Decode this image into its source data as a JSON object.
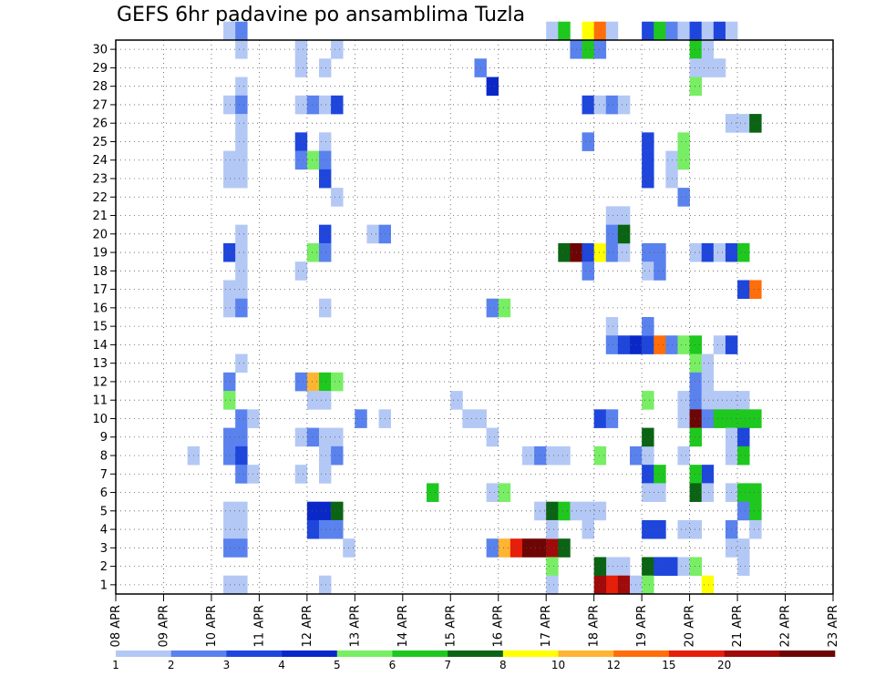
{
  "chart_data": {
    "type": "heatmap",
    "title": "GEFS 6hr padavine po ansamblima Tuzla",
    "xlabel": "",
    "ylabel": "",
    "x_ticks": [
      "08 APR",
      "09 APR",
      "10 APR",
      "11 APR",
      "12 APR",
      "13 APR",
      "14 APR",
      "15 APR",
      "16 APR",
      "17 APR",
      "18 APR",
      "19 APR",
      "20 APR",
      "21 APR",
      "22 APR",
      "23 APR"
    ],
    "y_ticks": [
      1,
      2,
      3,
      4,
      5,
      6,
      7,
      8,
      9,
      10,
      11,
      12,
      13,
      14,
      15,
      16,
      17,
      18,
      19,
      20,
      21,
      22,
      23,
      24,
      25,
      26,
      27,
      28,
      29,
      30
    ],
    "x_steps_per_day": 4,
    "xlim_steps": [
      0,
      60
    ],
    "ylim_members": [
      0,
      30
    ],
    "grid": true,
    "legend_position": "bottom",
    "colorbar": {
      "boundaries": [
        "1",
        "2",
        "3",
        "4",
        "5",
        "6",
        "7",
        "8",
        "10",
        "12",
        "15",
        "20"
      ],
      "colors": [
        "#b4c8f5",
        "#5a82ee",
        "#1e46dc",
        "#0a28c8",
        "#78ee64",
        "#1ec81e",
        "#0a6414",
        "#ffff00",
        "#ffb432",
        "#ff6e0a",
        "#e61e0a",
        "#a00a0a",
        "#6e0505"
      ]
    },
    "cells": [
      [
        9,
        30,
        0
      ],
      [
        10,
        30,
        1
      ],
      [
        10,
        29,
        0
      ],
      [
        10,
        27,
        0
      ],
      [
        9,
        26,
        0
      ],
      [
        10,
        26,
        1
      ],
      [
        10,
        25,
        0
      ],
      [
        10,
        24,
        0
      ],
      [
        9,
        23,
        0
      ],
      [
        10,
        23,
        0
      ],
      [
        9,
        22,
        0
      ],
      [
        10,
        22,
        0
      ],
      [
        10,
        19,
        0
      ],
      [
        9,
        18,
        2
      ],
      [
        10,
        18,
        0
      ],
      [
        10,
        17,
        0
      ],
      [
        9,
        16,
        0
      ],
      [
        10,
        16,
        0
      ],
      [
        9,
        15,
        0
      ],
      [
        10,
        15,
        1
      ],
      [
        10,
        12,
        0
      ],
      [
        9,
        11,
        1
      ],
      [
        9,
        10,
        4
      ],
      [
        10,
        9,
        1
      ],
      [
        11,
        9,
        0
      ],
      [
        9,
        8,
        1
      ],
      [
        10,
        8,
        1
      ],
      [
        9,
        7,
        1
      ],
      [
        10,
        7,
        2
      ],
      [
        10,
        6,
        1
      ],
      [
        11,
        6,
        0
      ],
      [
        9,
        4,
        0
      ],
      [
        10,
        4,
        0
      ],
      [
        9,
        3,
        0
      ],
      [
        10,
        3,
        0
      ],
      [
        9,
        2,
        1
      ],
      [
        10,
        2,
        1
      ],
      [
        9,
        0,
        0
      ],
      [
        10,
        0,
        0
      ],
      [
        6,
        7,
        0
      ],
      [
        15,
        29,
        0
      ],
      [
        18,
        29,
        0
      ],
      [
        15,
        28,
        0
      ],
      [
        17,
        28,
        0
      ],
      [
        15,
        26,
        0
      ],
      [
        16,
        26,
        1
      ],
      [
        17,
        26,
        0
      ],
      [
        18,
        26,
        2
      ],
      [
        15,
        24,
        2
      ],
      [
        17,
        24,
        0
      ],
      [
        15,
        23,
        1
      ],
      [
        16,
        23,
        4
      ],
      [
        17,
        23,
        1
      ],
      [
        17,
        22,
        2
      ],
      [
        18,
        21,
        0
      ],
      [
        17,
        19,
        2
      ],
      [
        16,
        18,
        4
      ],
      [
        17,
        18,
        1
      ],
      [
        15,
        17,
        0
      ],
      [
        17,
        15,
        0
      ],
      [
        15,
        11,
        1
      ],
      [
        16,
        11,
        8
      ],
      [
        17,
        11,
        5
      ],
      [
        18,
        11,
        4
      ],
      [
        16,
        10,
        0
      ],
      [
        17,
        10,
        0
      ],
      [
        15,
        8,
        0
      ],
      [
        16,
        8,
        1
      ],
      [
        17,
        8,
        0
      ],
      [
        18,
        8,
        0
      ],
      [
        17,
        7,
        0
      ],
      [
        18,
        7,
        1
      ],
      [
        15,
        6,
        0
      ],
      [
        17,
        6,
        0
      ],
      [
        16,
        4,
        3
      ],
      [
        17,
        4,
        3
      ],
      [
        18,
        4,
        6
      ],
      [
        16,
        3,
        2
      ],
      [
        17,
        3,
        1
      ],
      [
        18,
        3,
        1
      ],
      [
        17,
        0,
        0
      ],
      [
        19,
        2,
        0
      ],
      [
        20,
        9,
        1
      ],
      [
        22,
        9,
        0
      ],
      [
        21,
        19,
        0
      ],
      [
        22,
        19,
        1
      ],
      [
        26,
        5,
        5
      ],
      [
        28,
        10,
        0
      ],
      [
        29,
        9,
        0
      ],
      [
        30,
        9,
        0
      ],
      [
        31,
        8,
        0
      ],
      [
        30,
        28,
        1
      ],
      [
        31,
        27,
        3
      ],
      [
        31,
        15,
        1
      ],
      [
        32,
        15,
        4
      ],
      [
        31,
        5,
        0
      ],
      [
        32,
        5,
        4
      ],
      [
        31,
        2,
        1
      ],
      [
        32,
        2,
        8
      ],
      [
        33,
        2,
        10
      ],
      [
        34,
        2,
        12
      ],
      [
        35,
        2,
        12
      ],
      [
        36,
        2,
        11
      ],
      [
        37,
        2,
        6
      ],
      [
        34,
        7,
        0
      ],
      [
        35,
        7,
        1
      ],
      [
        36,
        7,
        0
      ],
      [
        37,
        7,
        0
      ],
      [
        35,
        4,
        0
      ],
      [
        36,
        4,
        6
      ],
      [
        37,
        4,
        5
      ],
      [
        38,
        4,
        0
      ],
      [
        36,
        3,
        0
      ],
      [
        36,
        1,
        4
      ],
      [
        36,
        0,
        0
      ],
      [
        36,
        30,
        0
      ],
      [
        37,
        30,
        5
      ],
      [
        38,
        29,
        1
      ],
      [
        39,
        29,
        5
      ],
      [
        39,
        30,
        7
      ],
      [
        40,
        30,
        9
      ],
      [
        41,
        30,
        0
      ],
      [
        40,
        29,
        1
      ],
      [
        37,
        18,
        6
      ],
      [
        38,
        18,
        12
      ],
      [
        39,
        18,
        2
      ],
      [
        40,
        18,
        7
      ],
      [
        41,
        18,
        1
      ],
      [
        42,
        18,
        0
      ],
      [
        39,
        17,
        1
      ],
      [
        39,
        26,
        2
      ],
      [
        40,
        26,
        0
      ],
      [
        41,
        26,
        1
      ],
      [
        42,
        26,
        0
      ],
      [
        39,
        24,
        1
      ],
      [
        41,
        20,
        0
      ],
      [
        42,
        20,
        0
      ],
      [
        41,
        19,
        1
      ],
      [
        42,
        19,
        6
      ],
      [
        41,
        14,
        0
      ],
      [
        41,
        13,
        1
      ],
      [
        42,
        13,
        2
      ],
      [
        43,
        13,
        3
      ],
      [
        44,
        13,
        2
      ],
      [
        45,
        13,
        9
      ],
      [
        46,
        13,
        1
      ],
      [
        44,
        14,
        1
      ],
      [
        40,
        9,
        2
      ],
      [
        41,
        9,
        1
      ],
      [
        40,
        7,
        4
      ],
      [
        43,
        7,
        1
      ],
      [
        44,
        7,
        0
      ],
      [
        44,
        6,
        2
      ],
      [
        45,
        6,
        5
      ],
      [
        44,
        5,
        0
      ],
      [
        45,
        5,
        0
      ],
      [
        44,
        8,
        6
      ],
      [
        44,
        10,
        4
      ],
      [
        39,
        4,
        0
      ],
      [
        40,
        4,
        0
      ],
      [
        39,
        3,
        0
      ],
      [
        41,
        1,
        0
      ],
      [
        42,
        1,
        0
      ],
      [
        41,
        0,
        10
      ],
      [
        42,
        0,
        11
      ],
      [
        40,
        0,
        11
      ],
      [
        40,
        1,
        6
      ],
      [
        44,
        3,
        2
      ],
      [
        45,
        3,
        2
      ],
      [
        44,
        1,
        6
      ],
      [
        45,
        1,
        2
      ],
      [
        44,
        0,
        4
      ],
      [
        43,
        0,
        0
      ],
      [
        44,
        30,
        2
      ],
      [
        45,
        30,
        5
      ],
      [
        46,
        30,
        1
      ],
      [
        47,
        30,
        0
      ],
      [
        44,
        24,
        2
      ],
      [
        44,
        23,
        2
      ],
      [
        44,
        22,
        2
      ],
      [
        46,
        23,
        0
      ],
      [
        47,
        23,
        0
      ],
      [
        46,
        22,
        0
      ],
      [
        47,
        24,
        4
      ],
      [
        47,
        23,
        4
      ],
      [
        47,
        21,
        1
      ],
      [
        44,
        18,
        1
      ],
      [
        45,
        18,
        1
      ],
      [
        44,
        17,
        0
      ],
      [
        45,
        17,
        1
      ],
      [
        48,
        30,
        2
      ],
      [
        49,
        30,
        0
      ],
      [
        50,
        30,
        2
      ],
      [
        51,
        30,
        0
      ],
      [
        48,
        29,
        5
      ],
      [
        49,
        29,
        0
      ],
      [
        48,
        28,
        0
      ],
      [
        49,
        28,
        0
      ],
      [
        50,
        28,
        0
      ],
      [
        48,
        27,
        4
      ],
      [
        48,
        18,
        0
      ],
      [
        49,
        18,
        2
      ],
      [
        50,
        18,
        0
      ],
      [
        51,
        18,
        2
      ],
      [
        52,
        18,
        5
      ],
      [
        51,
        25,
        0
      ],
      [
        52,
        25,
        0
      ],
      [
        53,
        25,
        6
      ],
      [
        52,
        16,
        2
      ],
      [
        53,
        16,
        9
      ],
      [
        47,
        13,
        4
      ],
      [
        48,
        13,
        5
      ],
      [
        50,
        13,
        0
      ],
      [
        51,
        13,
        2
      ],
      [
        48,
        12,
        4
      ],
      [
        49,
        12,
        0
      ],
      [
        48,
        11,
        1
      ],
      [
        49,
        11,
        0
      ],
      [
        47,
        10,
        0
      ],
      [
        48,
        10,
        1
      ],
      [
        49,
        10,
        0
      ],
      [
        50,
        10,
        0
      ],
      [
        51,
        10,
        0
      ],
      [
        52,
        10,
        0
      ],
      [
        47,
        9,
        0
      ],
      [
        48,
        9,
        12
      ],
      [
        49,
        9,
        1
      ],
      [
        50,
        9,
        5
      ],
      [
        51,
        9,
        5
      ],
      [
        52,
        9,
        5
      ],
      [
        53,
        9,
        5
      ],
      [
        48,
        8,
        5
      ],
      [
        51,
        8,
        0
      ],
      [
        52,
        8,
        2
      ],
      [
        47,
        7,
        0
      ],
      [
        51,
        7,
        0
      ],
      [
        52,
        7,
        5
      ],
      [
        49,
        6,
        2
      ],
      [
        48,
        6,
        5
      ],
      [
        48,
        5,
        6
      ],
      [
        49,
        5,
        0
      ],
      [
        51,
        5,
        0
      ],
      [
        52,
        5,
        5
      ],
      [
        53,
        5,
        5
      ],
      [
        52,
        4,
        1
      ],
      [
        53,
        4,
        5
      ],
      [
        47,
        3,
        0
      ],
      [
        48,
        3,
        0
      ],
      [
        51,
        3,
        1
      ],
      [
        53,
        3,
        0
      ],
      [
        51,
        2,
        0
      ],
      [
        52,
        2,
        0
      ],
      [
        52,
        1,
        0
      ],
      [
        46,
        1,
        2
      ],
      [
        47,
        1,
        0
      ],
      [
        48,
        1,
        4
      ],
      [
        49,
        0,
        7
      ]
    ]
  }
}
